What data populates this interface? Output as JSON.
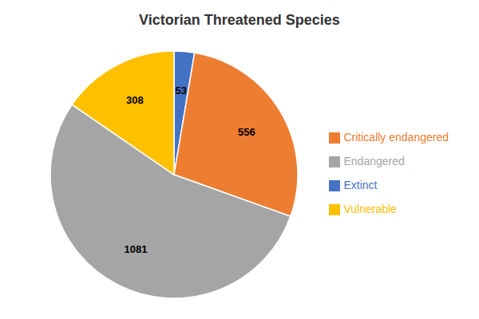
{
  "chart_data": {
    "type": "pie",
    "title": "Victorian Threatened Species",
    "categories": [
      "Extinct",
      "Critically endangered",
      "Endangered",
      "Vulnerable"
    ],
    "values": [
      53,
      556,
      1081,
      308
    ],
    "colors": [
      "#4472C4",
      "#ED7D31",
      "#A5A5A5",
      "#FFC000"
    ],
    "data_labels": true,
    "legend": "right"
  }
}
